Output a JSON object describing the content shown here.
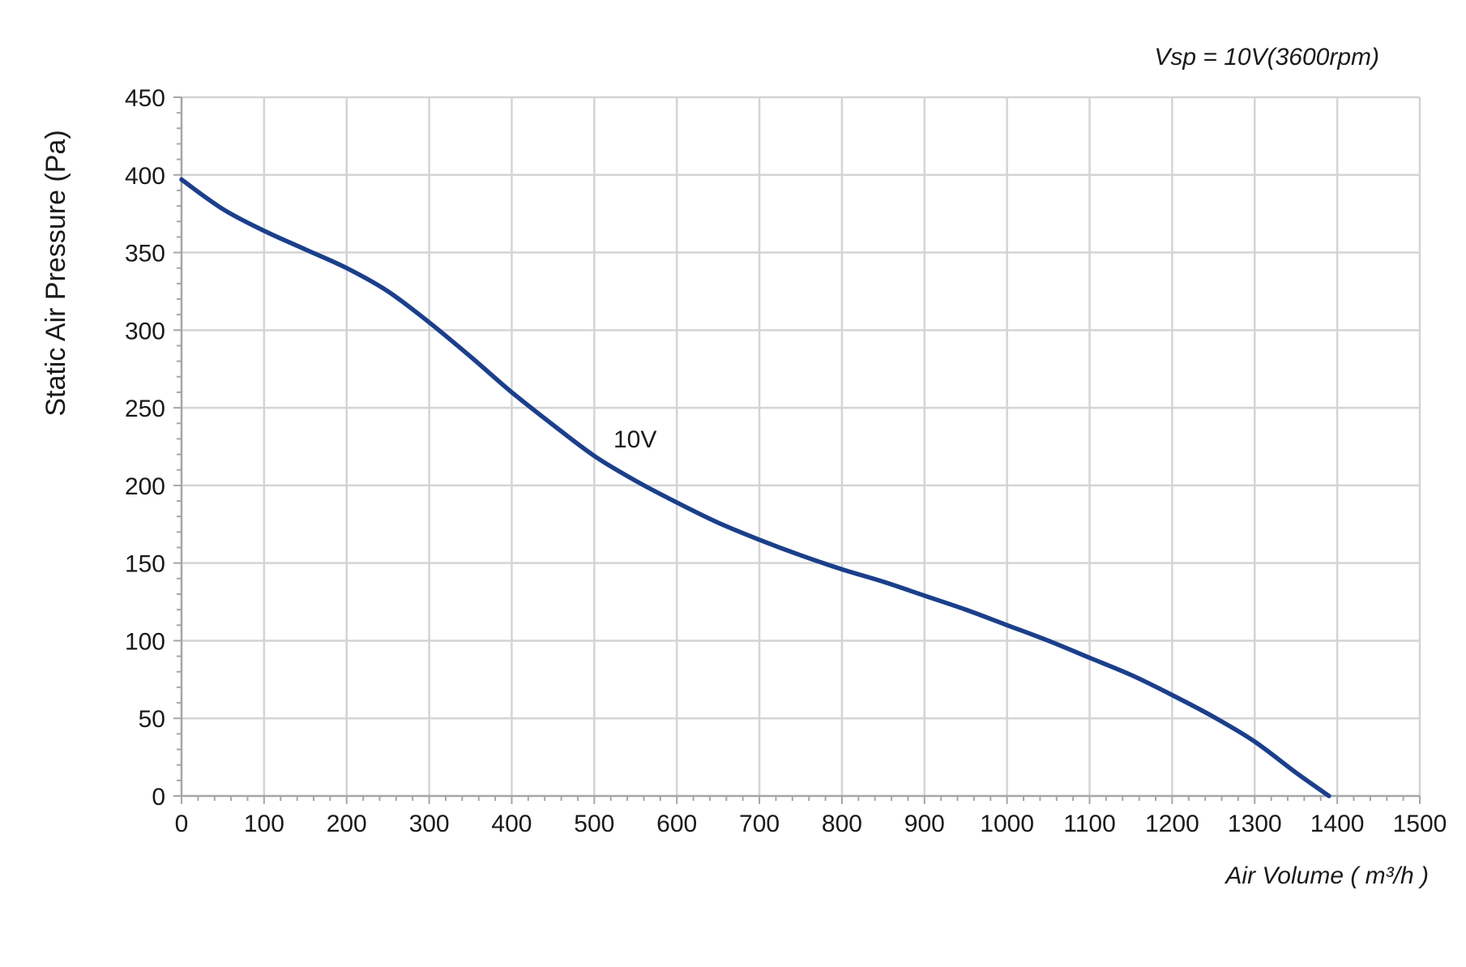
{
  "chart_data": {
    "type": "line",
    "annotation": "Vsp = 10V(3600rpm)",
    "xlabel": "Air Volume ( m³/h )",
    "ylabel": "Static Air Pressure  (Pa)",
    "xlim": [
      0,
      1500
    ],
    "ylim": [
      0,
      450
    ],
    "x_ticks": [
      0,
      100,
      200,
      300,
      400,
      500,
      600,
      700,
      800,
      900,
      1000,
      1100,
      1200,
      1300,
      1400,
      1500
    ],
    "y_ticks": [
      0,
      50,
      100,
      150,
      200,
      250,
      300,
      350,
      400,
      450
    ],
    "grid": true,
    "colors": {
      "series": "#1b3f8b",
      "grid": "#d4d4d4",
      "axis": "#a6a6a6"
    },
    "series": [
      {
        "name": "10V",
        "x": [
          0,
          50,
          100,
          150,
          200,
          250,
          300,
          350,
          400,
          450,
          500,
          550,
          600,
          650,
          700,
          750,
          800,
          850,
          900,
          950,
          1000,
          1050,
          1100,
          1150,
          1200,
          1250,
          1300,
          1350,
          1390
        ],
        "y": [
          397,
          378,
          364,
          352,
          340,
          325,
          305,
          283,
          260,
          239,
          219,
          203,
          189,
          176,
          165,
          155,
          146,
          138,
          129,
          120,
          110,
          100,
          89,
          78,
          65,
          51,
          35,
          15,
          0
        ]
      }
    ]
  }
}
